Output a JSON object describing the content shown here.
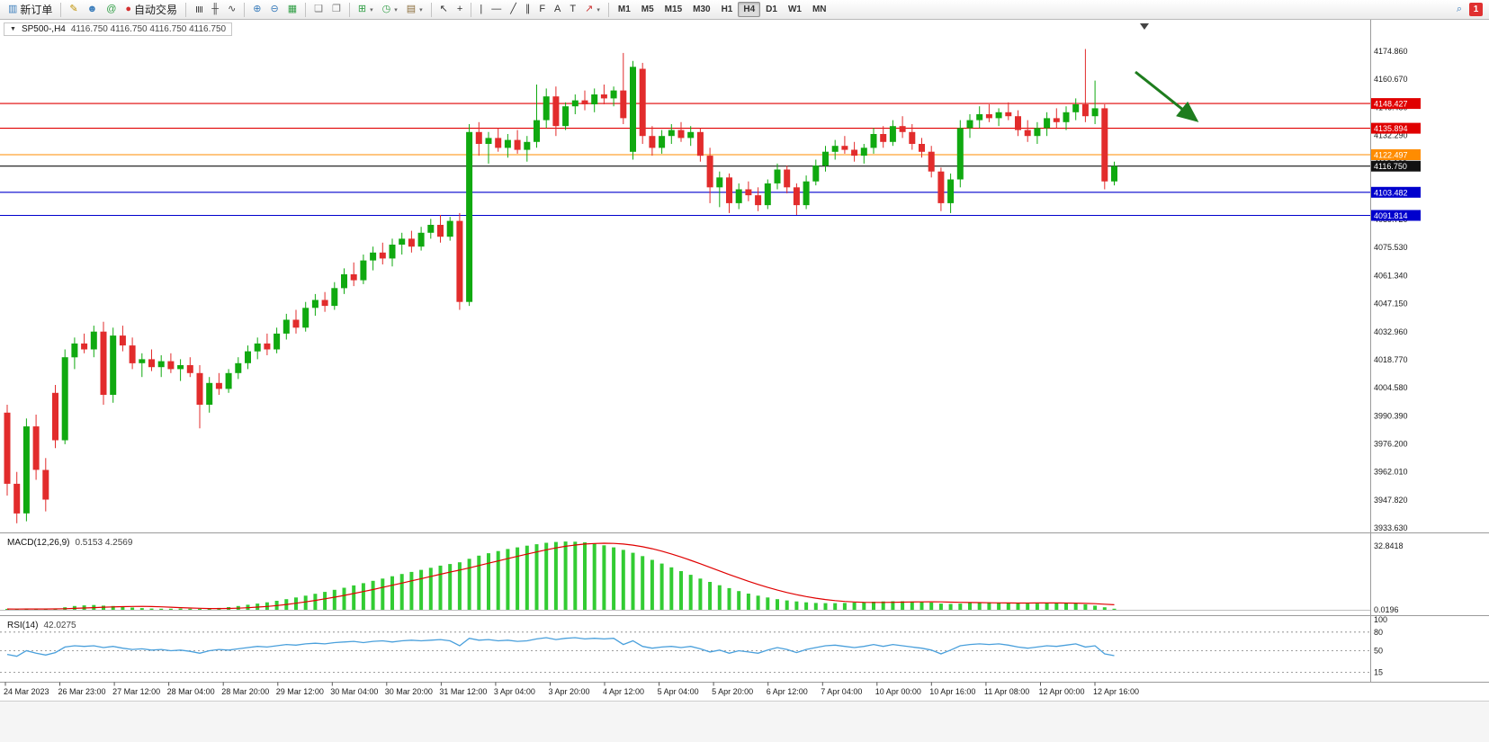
{
  "window": {
    "symbol_period": "SP500-,H4",
    "ohlc_line": "4116.750 4116.750 4116.750 4116.750",
    "collapse_icon": "▼"
  },
  "toolbar": {
    "items": [
      {
        "type": "button",
        "name": "new-order",
        "label": "新订单",
        "glyph": "▥",
        "color": "#3b7dbb"
      },
      {
        "type": "sep"
      },
      {
        "type": "icon",
        "name": "metaeditor",
        "glyph": "✎",
        "color": "#bf9000"
      },
      {
        "type": "icon",
        "name": "support-chat",
        "glyph": "☻",
        "color": "#3b7dbb"
      },
      {
        "type": "icon",
        "name": "community",
        "glyph": "@",
        "color": "#2f9e44"
      },
      {
        "type": "button",
        "name": "auto-trading",
        "label": "自动交易",
        "glyph": "●",
        "color": "#d43030"
      },
      {
        "type": "sep"
      },
      {
        "type": "icon",
        "name": "bar-chart-mode",
        "glyph": "≣",
        "color": "#444",
        "rot": true
      },
      {
        "type": "icon",
        "name": "candlestick-mode",
        "glyph": "╫",
        "color": "#444"
      },
      {
        "type": "icon",
        "name": "line-chart-mode",
        "glyph": "∿",
        "color": "#444"
      },
      {
        "type": "sep"
      },
      {
        "type": "icon",
        "name": "zoom-in",
        "glyph": "⊕",
        "color": "#3b7dbb"
      },
      {
        "type": "icon",
        "name": "zoom-out",
        "glyph": "⊖",
        "color": "#3b7dbb"
      },
      {
        "type": "icon",
        "name": "tile-windows",
        "glyph": "▦",
        "color": "#2f9e44"
      },
      {
        "type": "sep"
      },
      {
        "type": "icon",
        "name": "cascade-windows",
        "glyph": "❏",
        "color": "#777"
      },
      {
        "type": "icon",
        "name": "arrange-windows",
        "glyph": "❐",
        "color": "#777"
      },
      {
        "type": "sep"
      },
      {
        "type": "icon",
        "name": "insert-indicator",
        "glyph": "⊞",
        "color": "#2f9e44",
        "caret": true
      },
      {
        "type": "icon",
        "name": "period-selector",
        "glyph": "◷",
        "color": "#2f9e44",
        "caret": true
      },
      {
        "type": "icon",
        "name": "chart-template",
        "glyph": "▤",
        "color": "#8a6d3b",
        "caret": true
      },
      {
        "type": "sep"
      },
      {
        "type": "icon",
        "name": "cursor-tool",
        "glyph": "↖",
        "color": "#333"
      },
      {
        "type": "icon",
        "name": "crosshair-tool",
        "glyph": "+",
        "color": "#333"
      },
      {
        "type": "sep"
      },
      {
        "type": "icon",
        "name": "vertical-line-tool",
        "glyph": "|",
        "color": "#333"
      },
      {
        "type": "icon",
        "name": "horizontal-line-tool",
        "glyph": "—",
        "color": "#333"
      },
      {
        "type": "icon",
        "name": "trendline-tool",
        "glyph": "╱",
        "color": "#333"
      },
      {
        "type": "icon",
        "name": "channel-tool",
        "glyph": "∥",
        "color": "#333"
      },
      {
        "type": "icon",
        "name": "fibonacci-tool",
        "glyph": "F",
        "color": "#333"
      },
      {
        "type": "icon",
        "name": "text-tool",
        "glyph": "A",
        "color": "#333"
      },
      {
        "type": "icon",
        "name": "label-tool",
        "glyph": "T",
        "color": "#333"
      },
      {
        "type": "icon",
        "name": "arrows-tool",
        "glyph": "↗",
        "color": "#c33",
        "caret": true
      },
      {
        "type": "sep"
      },
      {
        "type": "tf",
        "name": "tf-m1",
        "label": "M1"
      },
      {
        "type": "tf",
        "name": "tf-m5",
        "label": "M5"
      },
      {
        "type": "tf",
        "name": "tf-m15",
        "label": "M15"
      },
      {
        "type": "tf",
        "name": "tf-m30",
        "label": "M30"
      },
      {
        "type": "tf",
        "name": "tf-h1",
        "label": "H1"
      },
      {
        "type": "tf",
        "name": "tf-h4",
        "label": "H4",
        "active": true
      },
      {
        "type": "tf",
        "name": "tf-d1",
        "label": "D1"
      },
      {
        "type": "tf",
        "name": "tf-w1",
        "label": "W1"
      },
      {
        "type": "tf",
        "name": "tf-mn",
        "label": "MN"
      },
      {
        "type": "spacer"
      },
      {
        "type": "icon",
        "name": "search",
        "glyph": "⌕",
        "color": "#3b7dbb"
      },
      {
        "type": "badge",
        "name": "notification-count",
        "label": "1",
        "color": "#e03030"
      }
    ]
  },
  "colors": {
    "bull": "#10a910",
    "bear": "#e22c2c",
    "macd_hist": "#33cc33",
    "macd_signal": "#e00000",
    "rsi_line": "#4aa0dc",
    "background": "#ffffff",
    "separator": "#9a9a9a"
  },
  "chart_data": {
    "type": "candlestick",
    "symbol": "SP500-",
    "timeframe": "H4",
    "price_axis": {
      "min": 3933.63,
      "max": 4174.86,
      "labels": [
        "4174.860",
        "4160.670",
        "4146.480",
        "4132.290",
        "4118.100",
        "4103.910",
        "4089.720",
        "4075.530",
        "4061.340",
        "4047.150",
        "4032.960",
        "4018.770",
        "4004.580",
        "3990.390",
        "3976.200",
        "3962.010",
        "3947.820",
        "3933.630"
      ]
    },
    "levels": [
      {
        "price": 4148.427,
        "label": "4148.427",
        "color": "#e00000",
        "kind": "resistance"
      },
      {
        "price": 4135.894,
        "label": "4135.894",
        "color": "#e00000",
        "kind": "resistance"
      },
      {
        "price": 4122.497,
        "label": "4122.497",
        "color": "#ff8c00",
        "kind": "pivot"
      },
      {
        "price": 4116.75,
        "label": "4116.750",
        "color": "#111111",
        "kind": "current-price"
      },
      {
        "price": 4103.482,
        "label": "4103.482",
        "color": "#0000cd",
        "kind": "support"
      },
      {
        "price": 4091.814,
        "label": "4091.814",
        "color": "#0000cd",
        "kind": "support"
      }
    ],
    "candles": [
      [
        3992,
        3996,
        3950,
        3956
      ],
      [
        3956,
        3962,
        3936,
        3941
      ],
      [
        3941,
        3989,
        3937,
        3985
      ],
      [
        3985,
        3991,
        3958,
        3963
      ],
      [
        3963,
        3969,
        3942,
        3948
      ],
      [
        4002,
        4006,
        3974,
        3978
      ],
      [
        3978,
        4024,
        3976,
        4020
      ],
      [
        4020,
        4030,
        4014,
        4027
      ],
      [
        4027,
        4032,
        4022,
        4024
      ],
      [
        4024,
        4036,
        4020,
        4033
      ],
      [
        4033,
        4038,
        3996,
        4001
      ],
      [
        4001,
        4035,
        3997,
        4031
      ],
      [
        4031,
        4036,
        4023,
        4026
      ],
      [
        4026,
        4030,
        4014,
        4017
      ],
      [
        4017,
        4022,
        4010,
        4019
      ],
      [
        4019,
        4024,
        4013,
        4015
      ],
      [
        4015,
        4021,
        4010,
        4018
      ],
      [
        4018,
        4022,
        4012,
        4014
      ],
      [
        4014,
        4019,
        4008,
        4016
      ],
      [
        4016,
        4020,
        4010,
        4012
      ],
      [
        4012,
        4016,
        3984,
        3996
      ],
      [
        3996,
        4010,
        3992,
        4007
      ],
      [
        4007,
        4012,
        4001,
        4004
      ],
      [
        4004,
        4014,
        4002,
        4012
      ],
      [
        4012,
        4020,
        4009,
        4017
      ],
      [
        4017,
        4026,
        4014,
        4023
      ],
      [
        4023,
        4030,
        4019,
        4027
      ],
      [
        4027,
        4032,
        4021,
        4024
      ],
      [
        4024,
        4035,
        4022,
        4032
      ],
      [
        4032,
        4042,
        4029,
        4039
      ],
      [
        4039,
        4044,
        4032,
        4035
      ],
      [
        4035,
        4048,
        4033,
        4045
      ],
      [
        4045,
        4052,
        4041,
        4049
      ],
      [
        4049,
        4053,
        4043,
        4046
      ],
      [
        4046,
        4058,
        4044,
        4055
      ],
      [
        4055,
        4065,
        4052,
        4062
      ],
      [
        4062,
        4068,
        4056,
        4059
      ],
      [
        4059,
        4072,
        4057,
        4069
      ],
      [
        4069,
        4076,
        4064,
        4073
      ],
      [
        4073,
        4078,
        4067,
        4070
      ],
      [
        4070,
        4080,
        4066,
        4077
      ],
      [
        4077,
        4083,
        4072,
        4080
      ],
      [
        4080,
        4084,
        4073,
        4076
      ],
      [
        4076,
        4086,
        4074,
        4083
      ],
      [
        4083,
        4090,
        4080,
        4087
      ],
      [
        4087,
        4092,
        4078,
        4081
      ],
      [
        4081,
        4091,
        4079,
        4089
      ],
      [
        4089,
        4093,
        4044,
        4048
      ],
      [
        4048,
        4138,
        4046,
        4134
      ],
      [
        4134,
        4139,
        4122,
        4128
      ],
      [
        4128,
        4134,
        4118,
        4131
      ],
      [
        4131,
        4136,
        4124,
        4126
      ],
      [
        4126,
        4133,
        4121,
        4130
      ],
      [
        4130,
        4135,
        4123,
        4125
      ],
      [
        4125,
        4132,
        4119,
        4129
      ],
      [
        4129,
        4158,
        4126,
        4140
      ],
      [
        4140,
        4156,
        4136,
        4152
      ],
      [
        4152,
        4157,
        4132,
        4137
      ],
      [
        4137,
        4149,
        4135,
        4147
      ],
      [
        4147,
        4153,
        4143,
        4150
      ],
      [
        4150,
        4155,
        4145,
        4148
      ],
      [
        4148,
        4156,
        4144,
        4153
      ],
      [
        4153,
        4158,
        4148,
        4151
      ],
      [
        4151,
        4157,
        4147,
        4155
      ],
      [
        4155,
        4174,
        4138,
        4141
      ],
      [
        4124,
        4170,
        4120,
        4167
      ],
      [
        4166,
        4169,
        4128,
        4132
      ],
      [
        4132,
        4137,
        4122,
        4126
      ],
      [
        4126,
        4135,
        4123,
        4132
      ],
      [
        4132,
        4138,
        4128,
        4135
      ],
      [
        4135,
        4139,
        4129,
        4131
      ],
      [
        4131,
        4137,
        4127,
        4134
      ],
      [
        4134,
        4136,
        4119,
        4122
      ],
      [
        4122,
        4126,
        4098,
        4106
      ],
      [
        4106,
        4114,
        4096,
        4111
      ],
      [
        4111,
        4113,
        4093,
        4098
      ],
      [
        4098,
        4108,
        4095,
        4105
      ],
      [
        4105,
        4109,
        4099,
        4102
      ],
      [
        4102,
        4106,
        4094,
        4097
      ],
      [
        4097,
        4110,
        4095,
        4108
      ],
      [
        4108,
        4118,
        4105,
        4115
      ],
      [
        4115,
        4117,
        4103,
        4106
      ],
      [
        4106,
        4108,
        4092,
        4097
      ],
      [
        4097,
        4112,
        4095,
        4109
      ],
      [
        4109,
        4120,
        4107,
        4117
      ],
      [
        4117,
        4127,
        4114,
        4124
      ],
      [
        4124,
        4130,
        4120,
        4127
      ],
      [
        4127,
        4132,
        4123,
        4125
      ],
      [
        4125,
        4129,
        4119,
        4122
      ],
      [
        4122,
        4128,
        4118,
        4126
      ],
      [
        4126,
        4136,
        4123,
        4133
      ],
      [
        4133,
        4137,
        4126,
        4129
      ],
      [
        4129,
        4140,
        4127,
        4137
      ],
      [
        4137,
        4142,
        4131,
        4134
      ],
      [
        4134,
        4138,
        4125,
        4128
      ],
      [
        4128,
        4131,
        4121,
        4124
      ],
      [
        4124,
        4127,
        4111,
        4114
      ],
      [
        4114,
        4116,
        4094,
        4098
      ],
      [
        4098,
        4113,
        4093,
        4110
      ],
      [
        4110,
        4140,
        4106,
        4136
      ],
      [
        4136,
        4143,
        4131,
        4140
      ],
      [
        4140,
        4147,
        4136,
        4143
      ],
      [
        4143,
        4148,
        4139,
        4141
      ],
      [
        4141,
        4146,
        4137,
        4144
      ],
      [
        4144,
        4149,
        4140,
        4142
      ],
      [
        4142,
        4145,
        4132,
        4135
      ],
      [
        4135,
        4140,
        4129,
        4132
      ],
      [
        4132,
        4139,
        4128,
        4136
      ],
      [
        4136,
        4144,
        4132,
        4141
      ],
      [
        4141,
        4146,
        4136,
        4139
      ],
      [
        4139,
        4147,
        4135,
        4144
      ],
      [
        4144,
        4151,
        4140,
        4148
      ],
      [
        4148,
        4176,
        4139,
        4142
      ],
      [
        4142,
        4160,
        4138,
        4146
      ],
      [
        4146,
        4148,
        4105,
        4109
      ],
      [
        4109,
        4119,
        4107,
        4116.75
      ]
    ],
    "time_labels": [
      "24 Mar 2023",
      "26 Mar 23:00",
      "27 Mar 12:00",
      "28 Mar 04:00",
      "28 Mar 20:00",
      "29 Mar 12:00",
      "30 Mar 04:00",
      "30 Mar 20:00",
      "31 Mar 12:00",
      "3 Apr 04:00",
      "3 Apr 20:00",
      "4 Apr 12:00",
      "5 Apr 04:00",
      "5 Apr 20:00",
      "6 Apr 12:00",
      "7 Apr 04:00",
      "10 Apr 00:00",
      "10 Apr 16:00",
      "11 Apr 08:00",
      "12 Apr 00:00",
      "12 Apr 16:00"
    ],
    "macd": {
      "name": "MACD(12,26,9)",
      "values_display": "0.5153 4.2569",
      "scale_top": "32.8418",
      "scale_bottom": "0.0196",
      "histogram": [
        0.4,
        0.3,
        0.5,
        0.4,
        0.3,
        0.6,
        1.2,
        1.8,
        2.1,
        2.3,
        2.0,
        1.8,
        1.5,
        1.1,
        0.8,
        0.6,
        0.5,
        0.5,
        0.6,
        0.5,
        0.4,
        0.6,
        0.9,
        1.3,
        1.8,
        2.4,
        3.0,
        3.6,
        4.3,
        5.1,
        5.9,
        6.8,
        7.7,
        8.6,
        9.6,
        10.6,
        11.7,
        12.8,
        13.9,
        15.0,
        16.1,
        17.2,
        18.2,
        19.2,
        20.2,
        21.2,
        22.0,
        22.8,
        24.5,
        26.0,
        27.2,
        28.2,
        29.2,
        30.0,
        30.8,
        31.5,
        32.2,
        32.6,
        32.8,
        32.7,
        32.4,
        31.8,
        31.0,
        30.0,
        28.8,
        27.4,
        25.8,
        24.0,
        22.2,
        20.4,
        18.6,
        16.8,
        15.0,
        13.4,
        11.8,
        10.4,
        9.0,
        7.8,
        6.8,
        5.9,
        5.1,
        4.5,
        4.0,
        3.6,
        3.3,
        3.2,
        3.2,
        3.3,
        3.5,
        3.7,
        3.9,
        4.0,
        4.1,
        4.1,
        4.0,
        3.8,
        3.5,
        3.0,
        2.8,
        3.0,
        3.3,
        3.5,
        3.6,
        3.5,
        3.4,
        3.2,
        3.0,
        3.0,
        3.1,
        3.2,
        3.2,
        3.0,
        2.6,
        2.0,
        1.2,
        0.5153
      ]
    },
    "rsi": {
      "name": "RSI(14)",
      "value_display": "42.0275",
      "dashed_levels": [
        80,
        50,
        15
      ],
      "scale_labels": [
        {
          "label": "100",
          "value": 100
        },
        {
          "label": "80",
          "value": 80
        },
        {
          "label": "50",
          "value": 50
        },
        {
          "label": "15",
          "value": 15
        }
      ],
      "values": [
        44,
        41,
        50,
        46,
        43,
        47,
        56,
        58,
        57,
        58,
        55,
        57,
        54,
        52,
        53,
        51,
        52,
        50,
        51,
        49,
        46,
        50,
        52,
        51,
        53,
        55,
        57,
        56,
        58,
        60,
        59,
        61,
        62,
        61,
        63,
        64,
        65,
        63,
        65,
        66,
        64,
        66,
        67,
        66,
        67,
        68,
        66,
        58,
        70,
        67,
        68,
        66,
        67,
        65,
        66,
        69,
        71,
        68,
        70,
        71,
        69,
        70,
        69,
        70,
        60,
        66,
        57,
        54,
        56,
        57,
        55,
        57,
        53,
        48,
        51,
        46,
        50,
        48,
        46,
        51,
        55,
        52,
        47,
        52,
        55,
        58,
        59,
        57,
        55,
        57,
        60,
        57,
        60,
        58,
        56,
        54,
        51,
        45,
        51,
        58,
        60,
        61,
        60,
        61,
        59,
        56,
        54,
        56,
        58,
        57,
        59,
        61,
        56,
        58,
        45,
        42.0275
      ]
    },
    "annotation_arrow": {
      "direction": "down-right",
      "color": "#1e7d1e"
    }
  }
}
